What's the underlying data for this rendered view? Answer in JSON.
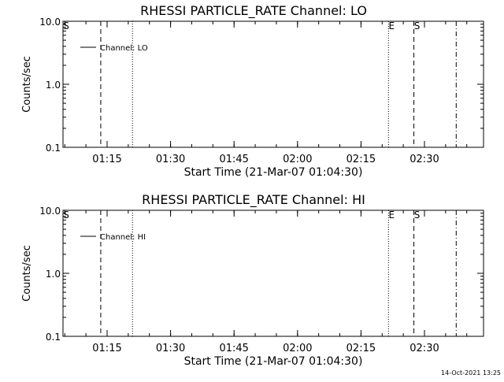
{
  "footer_timestamp": "14-Oct-2021 13:25",
  "chart_data": [
    {
      "type": "line",
      "title": "RHESSI PARTICLE_RATE Channel: LO",
      "xlabel": "Start Time (21-Mar-07 01:04:30)",
      "ylabel": "Counts/sec",
      "y_scale": "log",
      "ylim": [
        0.1,
        10.0
      ],
      "y_ticks": [
        "10.0",
        "1.0",
        "0.1"
      ],
      "x_ticks": [
        "01:15",
        "01:30",
        "01:45",
        "02:00",
        "02:15",
        "02:30"
      ],
      "series": [
        {
          "name": "Channel: LO",
          "values": []
        }
      ],
      "legend_position": "top-left",
      "markers": [
        {
          "time": "01:04:30",
          "style": "solid",
          "label": "S"
        },
        {
          "time": "01:13:30",
          "style": "dashed",
          "label": ""
        },
        {
          "time": "01:21:00",
          "style": "dotted",
          "label": ""
        },
        {
          "time": "02:21:30",
          "style": "dotted",
          "label": "E"
        },
        {
          "time": "02:27:30",
          "style": "dashed",
          "label": "S"
        },
        {
          "time": "02:37:30",
          "style": "dashdot",
          "label": ""
        }
      ]
    },
    {
      "type": "line",
      "title": "RHESSI PARTICLE_RATE Channel: HI",
      "xlabel": "Start Time (21-Mar-07 01:04:30)",
      "ylabel": "Counts/sec",
      "y_scale": "log",
      "ylim": [
        0.1,
        10.0
      ],
      "y_ticks": [
        "10.0",
        "1.0",
        "0.1"
      ],
      "x_ticks": [
        "01:15",
        "01:30",
        "01:45",
        "02:00",
        "02:15",
        "02:30"
      ],
      "series": [
        {
          "name": "Channel: HI",
          "values": []
        }
      ],
      "legend_position": "top-left",
      "markers": [
        {
          "time": "01:04:30",
          "style": "solid",
          "label": "S"
        },
        {
          "time": "01:13:30",
          "style": "dashed",
          "label": ""
        },
        {
          "time": "01:21:00",
          "style": "dotted",
          "label": ""
        },
        {
          "time": "02:21:30",
          "style": "dotted",
          "label": "E"
        },
        {
          "time": "02:27:30",
          "style": "dashed",
          "label": "S"
        },
        {
          "time": "02:37:30",
          "style": "dashdot",
          "label": ""
        }
      ]
    }
  ]
}
